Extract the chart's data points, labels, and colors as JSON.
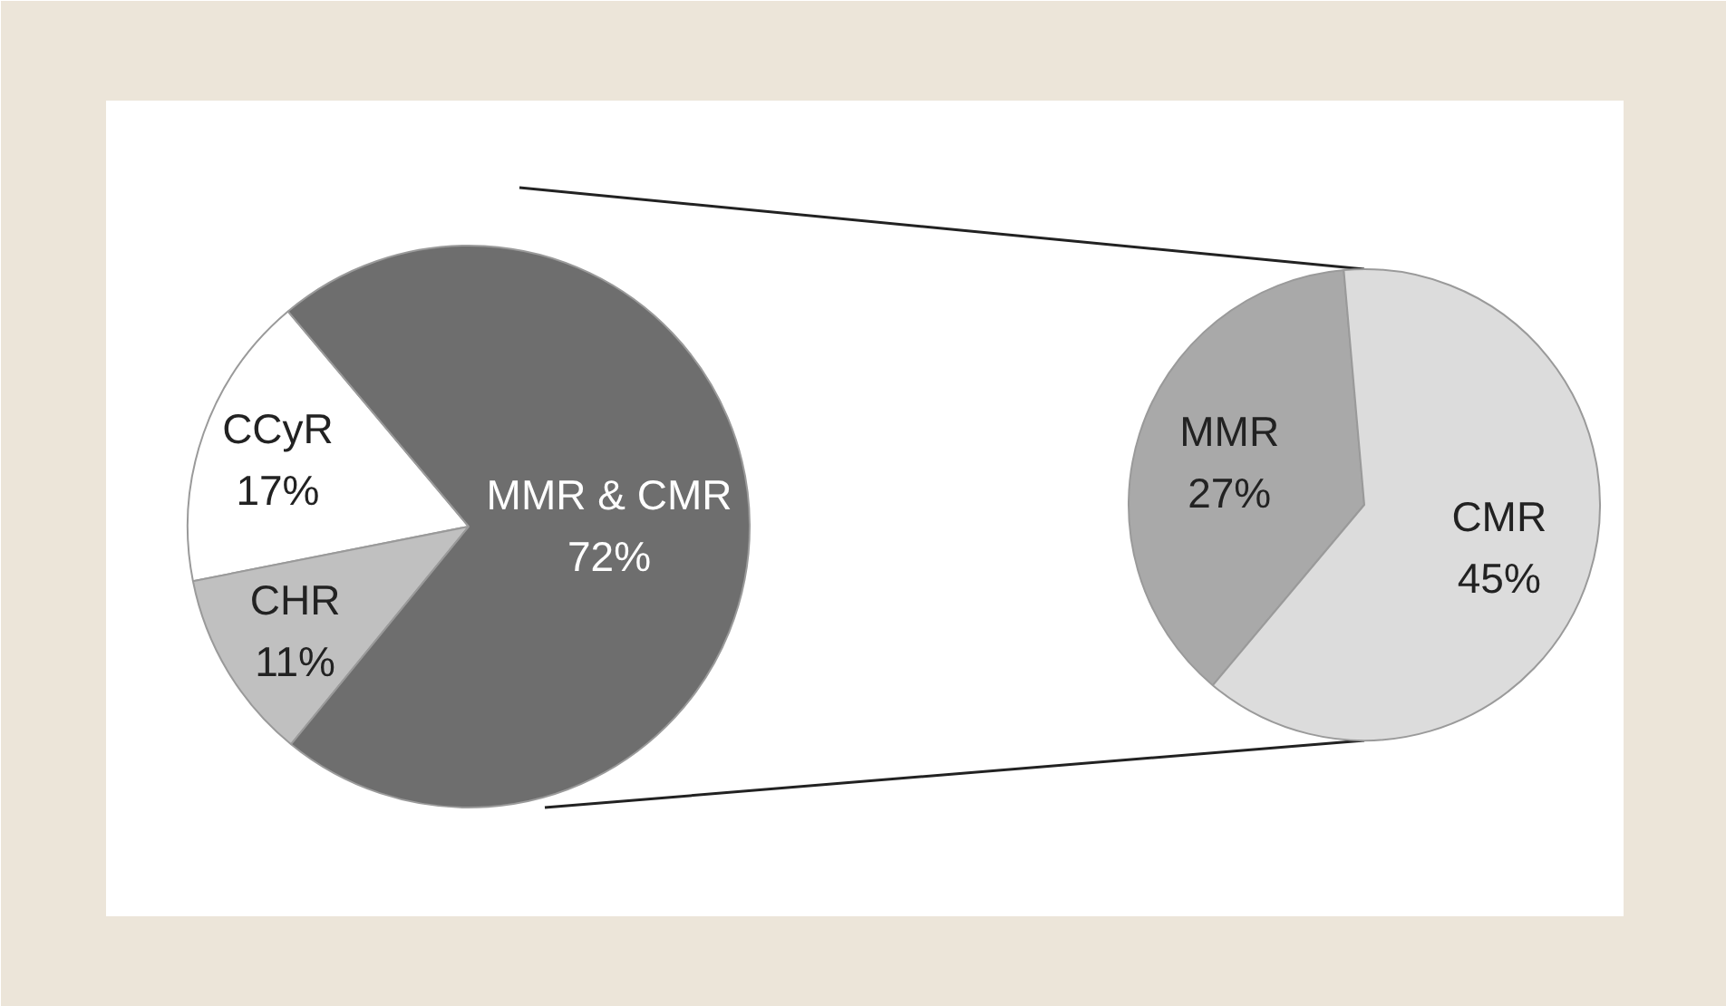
{
  "chart_data": [
    {
      "type": "pie",
      "categories": [
        "CCyR",
        "CHR",
        "MMR & CMR"
      ],
      "values": [
        17,
        11,
        72
      ],
      "colors": [
        "#ffffff",
        "#c0c0c0",
        "#6e6e6e"
      ],
      "value_labels": [
        "17%",
        "11%",
        "72%"
      ]
    },
    {
      "type": "pie",
      "categories": [
        "MMR",
        "CMR"
      ],
      "values": [
        27,
        45
      ],
      "colors": [
        "#a9a9a9",
        "#dcdcdc"
      ],
      "value_labels": [
        "27%",
        "45%"
      ]
    }
  ]
}
